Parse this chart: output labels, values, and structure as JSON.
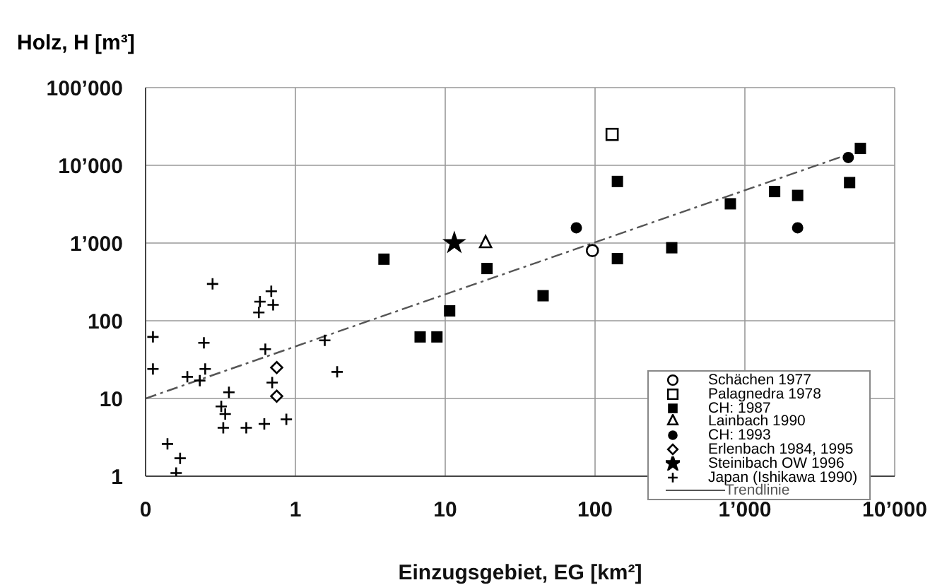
{
  "chart_data": {
    "type": "scatter",
    "xlabel": "Einzugsgebiet, EG [km²]",
    "ylabel": "Holz, H [m³]",
    "log": "xy",
    "grid": true,
    "legend": "bottom right",
    "xlim": [
      0.1,
      10000
    ],
    "ylim": [
      1,
      100000
    ],
    "xticks": [
      {
        "value": 0.1,
        "label": "0"
      },
      1,
      10,
      100,
      {
        "value": 1000,
        "label": "1’000"
      },
      {
        "value": 10000,
        "label": "10’000"
      }
    ],
    "yticks": [
      1,
      10,
      100,
      {
        "value": 1000,
        "label": "1’000"
      },
      {
        "value": 10000,
        "label": "10’000"
      },
      {
        "value": 100000,
        "label": "100’000"
      }
    ],
    "series": [
      {
        "name": "Schächen 1977",
        "color": "#000000",
        "marker": "circle-open",
        "x": [
          96
        ],
        "values": [
          800
        ]
      },
      {
        "name": "Palagnedra 1978",
        "color": "#000000",
        "marker": "square-open",
        "x": [
          130
        ],
        "values": [
          25000
        ]
      },
      {
        "name": "CH: 1987",
        "color": "#000000",
        "marker": "square",
        "x": [
          3.9,
          6.8,
          8.8,
          10.7,
          19,
          45,
          141,
          141,
          325,
          800,
          1580,
          2250,
          5000,
          5900
        ],
        "values": [
          620,
          62,
          62,
          134,
          470,
          210,
          6200,
          630,
          870,
          3200,
          4600,
          4100,
          6000,
          16500
        ]
      },
      {
        "name": "Lainbach 1990",
        "color": "#000000",
        "marker": "triangle-open",
        "x": [
          18.6
        ],
        "values": [
          1000
        ]
      },
      {
        "name": "CH: 1993",
        "color": "#000000",
        "marker": "circle",
        "x": [
          4900,
          2250,
          75
        ],
        "values": [
          12600,
          1570,
          1570
        ]
      },
      {
        "name": "Erlenbach 1984, 1995",
        "color": "#000000",
        "marker": "diamond-open",
        "x": [
          0.75,
          0.75
        ],
        "values": [
          25,
          10.7
        ]
      },
      {
        "name": "Steinibach OW 1996",
        "color": "#000000",
        "marker": "star",
        "x": [
          11.5
        ],
        "values": [
          1000
        ]
      },
      {
        "name": "Japan (Ishikawa 1990)",
        "color": "#000000",
        "marker": "cross",
        "x": [
          0.112,
          0.112,
          0.28,
          0.69,
          0.58,
          0.71,
          0.57,
          0.245,
          0.63,
          0.25,
          0.19,
          0.23,
          0.36,
          0.7,
          0.32,
          0.34,
          0.33,
          0.47,
          0.62,
          0.87,
          0.14,
          1.57,
          1.9,
          0.17,
          0.16
        ],
        "values": [
          62,
          24,
          298,
          240,
          176,
          160,
          128,
          52,
          43,
          24,
          19,
          17,
          12,
          16,
          7.9,
          6.3,
          4.2,
          4.2,
          4.7,
          5.4,
          2.6,
          56,
          22,
          1.7,
          1.1
        ]
      },
      {
        "name": "Trendlinie",
        "type": "line",
        "color": "#555555",
        "line_style": "dashed",
        "x": [
          0.1,
          5000
        ],
        "values": [
          10,
          14000
        ]
      }
    ]
  }
}
